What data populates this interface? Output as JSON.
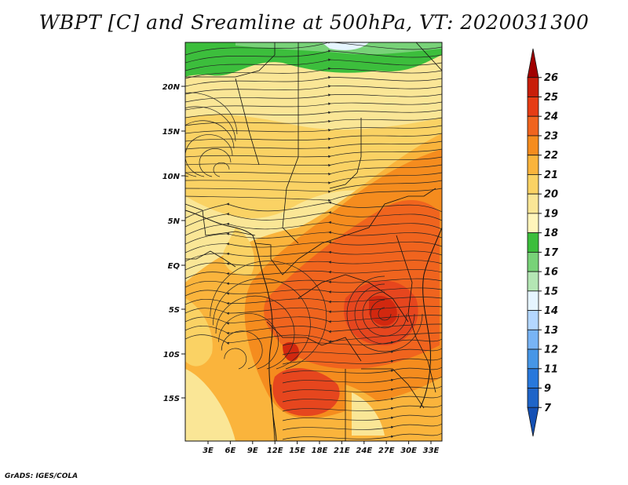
{
  "title": "WBPT [C] and Sreamline at 500hPa, VT: 2020031300",
  "credit": "GrADS: IGES/COLA",
  "lat_labels": [
    "20N",
    "15N",
    "10N",
    "5N",
    "EQ",
    "5S",
    "10S",
    "15S"
  ],
  "lon_labels": [
    "3E",
    "6E",
    "9E",
    "12E",
    "15E",
    "18E",
    "21E",
    "24E",
    "27E",
    "30E",
    "33E"
  ],
  "colorbar": {
    "levels": [
      "26",
      "25",
      "24",
      "23",
      "22",
      "21",
      "20",
      "19",
      "18",
      "17",
      "16",
      "15",
      "14",
      "13",
      "12",
      "11",
      "9",
      "7"
    ],
    "colors": [
      "#a00000",
      "#c81e0a",
      "#e63c14",
      "#f0641e",
      "#f58c1e",
      "#fab43c",
      "#fad264",
      "#fae696",
      "#fff5bb",
      "#3cbe3c",
      "#78d278",
      "#b4e6b4",
      "#e6f5ff",
      "#b4d7ff",
      "#78b4f5",
      "#4696e6",
      "#2878dc",
      "#1e64c8",
      "#1450b4"
    ]
  },
  "map_colors": {
    "deep_red": "#d2280f",
    "red": "#e6461e",
    "orange_red": "#f0641e",
    "orange": "#f58c1e",
    "light_orange": "#fab43c",
    "tan": "#fad264",
    "pale": "#fae696",
    "light_green": "#78d278",
    "green": "#3cbe3c",
    "pale_green": "#b4e6b4",
    "very_light": "#e6f5ff"
  }
}
